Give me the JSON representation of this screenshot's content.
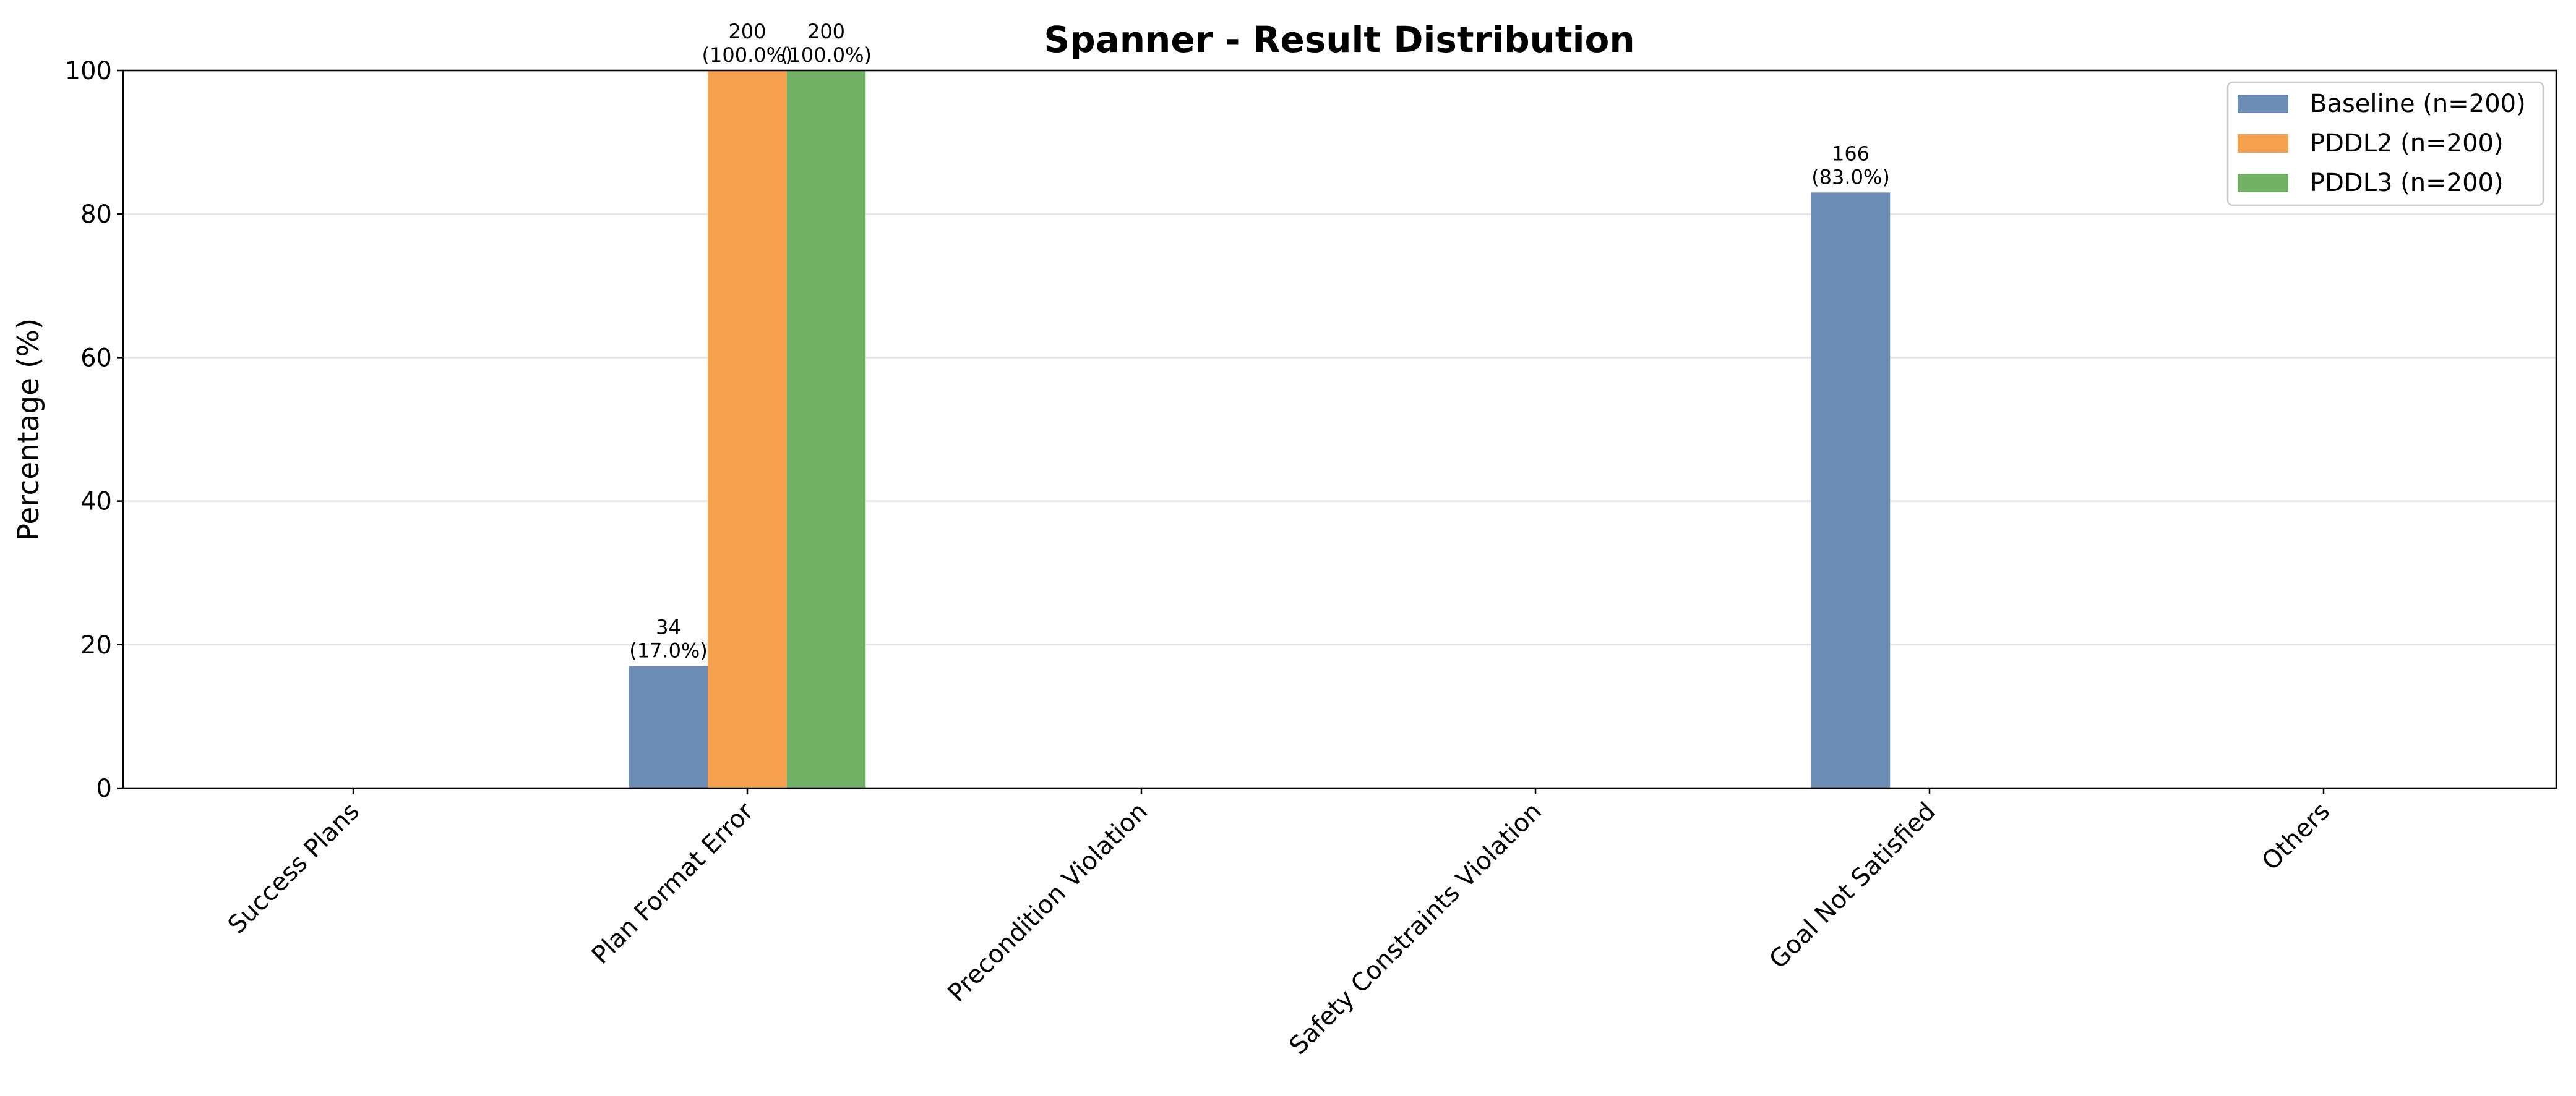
{
  "chart_data": {
    "type": "bar",
    "title": "Spanner - Result Distribution",
    "y_label": "Percentage (%)",
    "categories": [
      "Success Plans",
      "Plan Format Error",
      "Precondition Violation",
      "Safety Constraints Violation",
      "Goal Not Satisfied",
      "Others"
    ],
    "series": [
      {
        "name": "Baseline (n=200)",
        "color": "#6a8cb5",
        "values": [
          0,
          17,
          0,
          0,
          83,
          0
        ],
        "value_labels": [
          null,
          "34\n(17.0%)",
          null,
          null,
          "166\n(83.0%)",
          null
        ]
      },
      {
        "name": "PDDL2 (n=200)",
        "color": "#f4a04d",
        "values": [
          0,
          100,
          0,
          0,
          0,
          0
        ],
        "value_labels": [
          null,
          "200\n(100.0%)",
          null,
          null,
          null,
          null
        ]
      },
      {
        "name": "PDDL3 (n=200)",
        "color": "#6fb064",
        "values": [
          0,
          100,
          0,
          0,
          0,
          0
        ],
        "value_labels": [
          null,
          "200\n(100.0%)",
          null,
          null,
          null,
          null
        ]
      }
    ],
    "ylim": [
      0,
      100
    ],
    "yticks": [
      0,
      20,
      40,
      60,
      80,
      100
    ],
    "grid": true,
    "legend": "upper right"
  }
}
